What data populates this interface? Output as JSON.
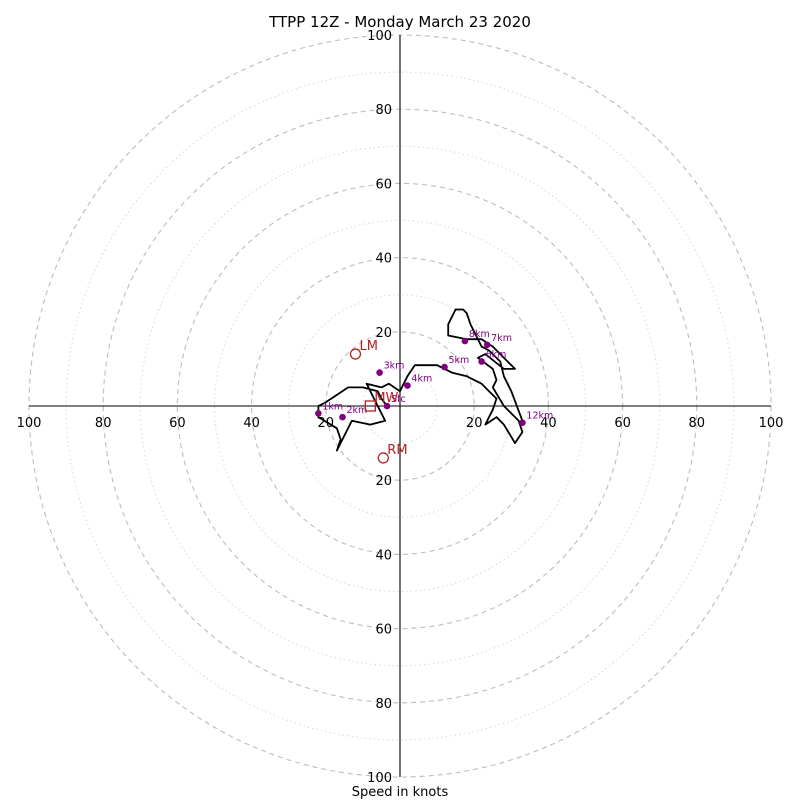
{
  "chart_data": {
    "type": "scatter",
    "title": "TTPP 12Z - Monday March 23 2020",
    "xlabel": "Speed in knots",
    "ylabel": "",
    "xlim": [
      -100,
      100
    ],
    "ylim": [
      -100,
      100
    ],
    "rings_major": [
      20,
      40,
      60,
      80,
      100
    ],
    "rings_minor": [
      10,
      30,
      50,
      70,
      90
    ],
    "x_ticks": [
      {
        "value": -100,
        "label": "100"
      },
      {
        "value": -80,
        "label": "80"
      },
      {
        "value": -60,
        "label": "60"
      },
      {
        "value": -40,
        "label": "40"
      },
      {
        "value": -20,
        "label": "20"
      },
      {
        "value": 20,
        "label": "20"
      },
      {
        "value": 40,
        "label": "40"
      },
      {
        "value": 60,
        "label": "60"
      },
      {
        "value": 80,
        "label": "80"
      },
      {
        "value": 100,
        "label": "100"
      }
    ],
    "y_ticks": [
      {
        "value": 100,
        "label": "100"
      },
      {
        "value": 80,
        "label": "80"
      },
      {
        "value": 60,
        "label": "60"
      },
      {
        "value": 40,
        "label": "40"
      },
      {
        "value": 20,
        "label": "20"
      },
      {
        "value": -20,
        "label": "20"
      },
      {
        "value": -40,
        "label": "40"
      },
      {
        "value": -60,
        "label": "60"
      },
      {
        "value": -80,
        "label": "80"
      },
      {
        "value": -100,
        "label": "100"
      }
    ],
    "hodograph": [
      [
        -3.5,
        0
      ],
      [
        -5,
        2
      ],
      [
        -6,
        4
      ],
      [
        -10,
        5
      ],
      [
        -14,
        5
      ],
      [
        -17,
        3
      ],
      [
        -20,
        1
      ],
      [
        -22,
        0
      ],
      [
        -22,
        -3
      ],
      [
        -17,
        -6
      ],
      [
        -16,
        -9
      ],
      [
        -17,
        -12
      ],
      [
        -13,
        -4
      ],
      [
        -8,
        -5
      ],
      [
        -4,
        -4
      ],
      [
        -6,
        0
      ],
      [
        -9,
        6
      ],
      [
        -5,
        5
      ],
      [
        -3,
        6
      ],
      [
        0,
        4
      ],
      [
        2,
        8
      ],
      [
        4,
        11
      ],
      [
        10,
        11
      ],
      [
        14,
        9
      ],
      [
        18,
        8
      ],
      [
        22,
        6
      ],
      [
        24,
        4
      ],
      [
        26,
        2
      ],
      [
        25,
        -1
      ],
      [
        24,
        -3
      ],
      [
        23,
        -5
      ],
      [
        26,
        -3
      ],
      [
        28,
        -5
      ],
      [
        31,
        -10
      ],
      [
        33,
        -7
      ],
      [
        32,
        -4
      ],
      [
        28,
        0
      ],
      [
        25,
        5
      ],
      [
        26,
        7
      ],
      [
        25,
        10
      ],
      [
        21,
        13
      ],
      [
        23,
        14
      ],
      [
        28,
        10
      ],
      [
        31,
        10
      ],
      [
        26,
        15
      ],
      [
        25,
        16
      ],
      [
        22,
        18
      ],
      [
        18,
        18
      ],
      [
        13,
        19
      ],
      [
        13,
        22
      ],
      [
        15,
        26
      ],
      [
        17,
        26
      ],
      [
        18,
        25
      ],
      [
        19,
        22
      ],
      [
        21,
        18
      ],
      [
        22,
        16
      ],
      [
        24,
        15
      ],
      [
        27,
        12
      ],
      [
        28,
        8
      ],
      [
        30,
        4
      ],
      [
        33,
        -4
      ]
    ],
    "height_points": [
      {
        "label": "Sfc",
        "x": -3.5,
        "y": 0
      },
      {
        "label": "1km",
        "x": -22,
        "y": -2
      },
      {
        "label": "2km",
        "x": -15.5,
        "y": -3
      },
      {
        "label": "3km",
        "x": -5.5,
        "y": 9
      },
      {
        "label": "4km",
        "x": 2,
        "y": 5.5
      },
      {
        "label": "5km",
        "x": 12,
        "y": 10.5
      },
      {
        "label": "6km",
        "x": 22,
        "y": 12
      },
      {
        "label": "7km",
        "x": 23.5,
        "y": 16.5
      },
      {
        "label": "8km",
        "x": 17.5,
        "y": 17.5
      },
      {
        "label": "12km",
        "x": 33,
        "y": -4.5
      }
    ],
    "motion_markers": [
      {
        "label": "LM",
        "x": -12,
        "y": 14,
        "shape": "circle"
      },
      {
        "label": "RM",
        "x": -4.5,
        "y": -14,
        "shape": "circle"
      },
      {
        "label": "MW",
        "x": -8,
        "y": 0,
        "shape": "square"
      }
    ],
    "colors": {
      "hodograph": "#000000",
      "height_points": "#800080",
      "motion_markers": "#b22222",
      "rings": "#bdbdbd"
    },
    "grid": true
  }
}
